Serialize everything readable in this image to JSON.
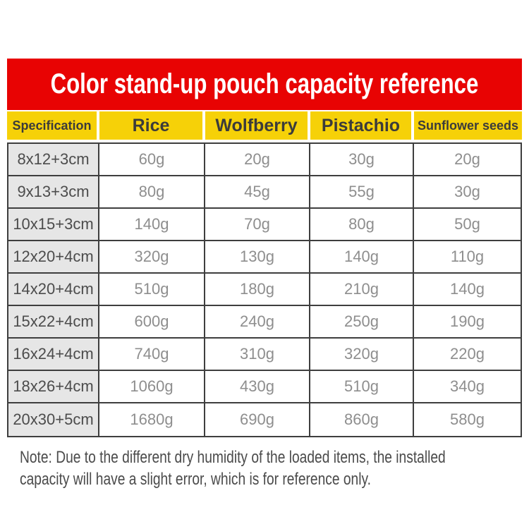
{
  "chart_data": {
    "type": "table",
    "title": "Color stand-up pouch capacity reference",
    "columns": [
      "Specification",
      "Rice",
      "Wolfberry",
      "Pistachio",
      "Sunflower seeds"
    ],
    "rows": [
      [
        "8x12+3cm",
        "60g",
        "20g",
        "30g",
        "20g"
      ],
      [
        "9x13+3cm",
        "80g",
        "45g",
        "55g",
        "30g"
      ],
      [
        "10x15+3cm",
        "140g",
        "70g",
        "80g",
        "50g"
      ],
      [
        "12x20+4cm",
        "320g",
        "130g",
        "140g",
        "110g"
      ],
      [
        "14x20+4cm",
        "510g",
        "180g",
        "210g",
        "140g"
      ],
      [
        "15x22+4cm",
        "600g",
        "240g",
        "250g",
        "190g"
      ],
      [
        "16x24+4cm",
        "740g",
        "310g",
        "320g",
        "220g"
      ],
      [
        "18x26+4cm",
        "1060g",
        "430g",
        "510g",
        "340g"
      ],
      [
        "20x30+5cm",
        "1680g",
        "690g",
        "860g",
        "580g"
      ]
    ],
    "note_lines": [
      "Note: Due to the different dry humidity of the loaded items, the installed",
      "capacity will have a slight error, which is for reference only."
    ],
    "layout_hints": {
      "first_column_role": "row header (pouch size specification)",
      "units": "grams capacity per pouch size per content type"
    },
    "colors": {
      "banner_red": "#e80303",
      "banner_text_white": "#ffffff",
      "header_yellow": "#f6d108",
      "header_text_dark": "#3b3b3b",
      "spec_column_gray": "#e6e6e6",
      "spec_text": "#4c4c4c",
      "value_text_gray": "#8e8e8e",
      "border_dark": "#3e3e3e",
      "note_text": "#4b4b4b"
    }
  }
}
